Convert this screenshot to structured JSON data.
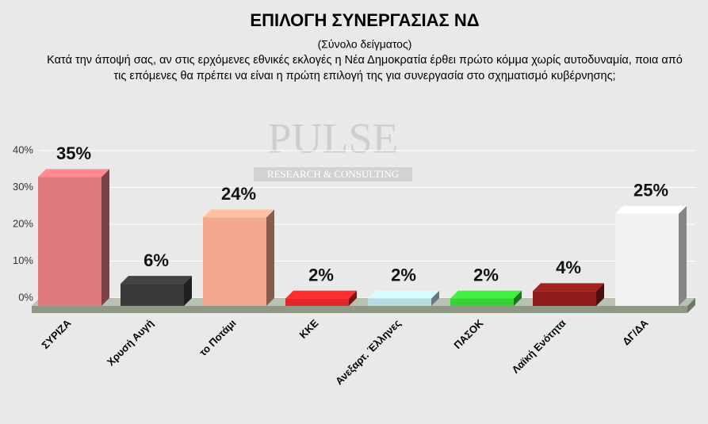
{
  "chart_data": {
    "type": "bar3d",
    "title": "ΕΠΙΛΟΓΗ ΣΥΝΕΡΓΑΣΙΑΣ ΝΔ",
    "subtitle": "(Σύνολο δείγματος)",
    "question": "Κατά την άποψή σας, αν στις ερχόμενες εθνικές εκλογές η Νέα Δημοκρατία έρθει πρώτο κόμμα χωρίς αυτοδυναμία, ποια από τις επόμενες θα πρέπει να είναι η πρώτη επιλογή της για συνεργασία στο σχηματισμό κυβέρνησης;",
    "watermark": {
      "name": "PULSE",
      "tagline": "RESEARCH & CONSULTING"
    },
    "categories": [
      "ΣΥΡΙΖΑ",
      "Χρυσή Αυγή",
      "το Ποτάμι",
      "ΚΚΕ",
      "Ανεξαρτ. Έλληνες",
      "ΠΑΣΟΚ",
      "Λαϊκή Ενότητα",
      "ΔΓ/ΔΑ"
    ],
    "values": [
      35,
      6,
      24,
      2,
      2,
      2,
      4,
      25
    ],
    "value_labels": [
      "35%",
      "6%",
      "24%",
      "2%",
      "2%",
      "2%",
      "4%",
      "25%"
    ],
    "colors": [
      "#e0787f",
      "#3a3a3a",
      "#f2a78e",
      "#e3262a",
      "#b9dbe3",
      "#35d335",
      "#8e1c1c",
      "#f2f2f2"
    ],
    "ylim": [
      0,
      40
    ],
    "yticks": [
      {
        "value": 0,
        "label": "0%"
      },
      {
        "value": 10,
        "label": "10%"
      },
      {
        "value": 20,
        "label": "20%"
      },
      {
        "value": 30,
        "label": "30%"
      },
      {
        "value": 40,
        "label": "40%"
      }
    ],
    "grid": true
  }
}
